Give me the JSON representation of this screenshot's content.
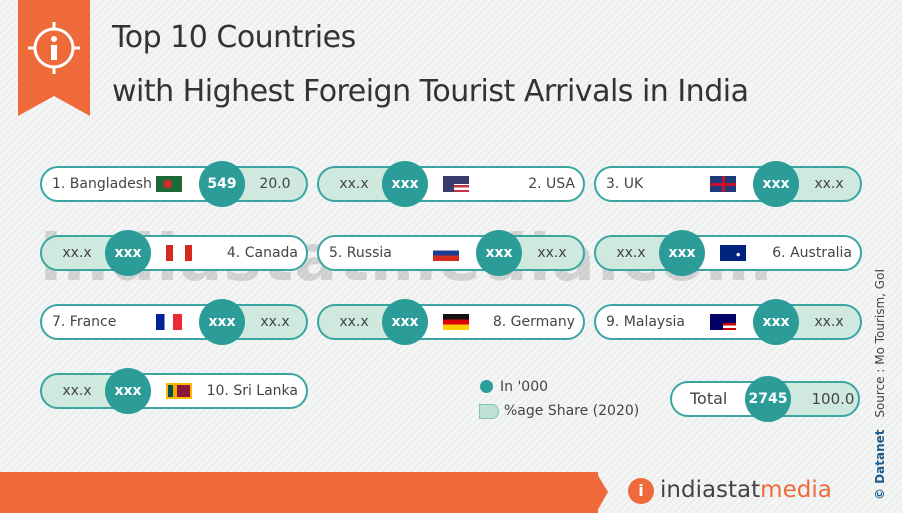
{
  "header": {
    "title_line1": "Top 10 Countries",
    "title_line2": "with Highest Foreign Tourist Arrivals in India"
  },
  "items": [
    {
      "name": "1. Bangladesh",
      "value": "549",
      "share": "20.0"
    },
    {
      "name": "2. USA",
      "value": "xxx",
      "share": "xx.x"
    },
    {
      "name": "3. UK",
      "value": "xxx",
      "share": "xx.x"
    },
    {
      "name": "4. Canada",
      "value": "xxx",
      "share": "xx.x"
    },
    {
      "name": "5. Russia",
      "value": "xxx",
      "share": "xx.x"
    },
    {
      "name": "6. Australia",
      "value": "xxx",
      "share": "xx.x"
    },
    {
      "name": "7. France",
      "value": "xxx",
      "share": "xx.x"
    },
    {
      "name": "8. Germany",
      "value": "xxx",
      "share": "xx.x"
    },
    {
      "name": "9. Malaysia",
      "value": "xxx",
      "share": "xx.x"
    },
    {
      "name": "10. Sri Lanka",
      "value": "xxx",
      "share": "xx.x"
    }
  ],
  "legend": {
    "value": "In '000",
    "share": "%age Share (2020)"
  },
  "total": {
    "label": "Total",
    "value": "2745",
    "share": "100.0"
  },
  "watermark": "indiastatmedia.com",
  "source": "Source : Mo Tourism, GoI",
  "brand": "© Datanet",
  "footer": {
    "logo_part1": "indiastat",
    "logo_part2": "media"
  }
}
